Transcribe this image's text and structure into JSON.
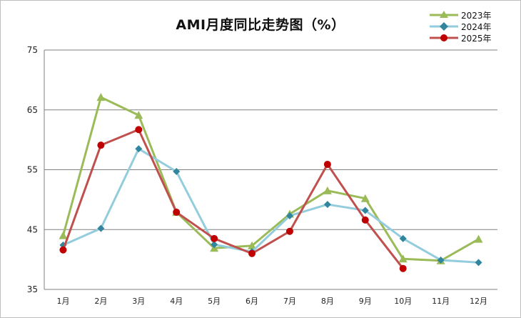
{
  "chart_data": {
    "type": "line",
    "title": "AMI月度同比走势图（%）",
    "xlabel": "",
    "ylabel": "",
    "categories": [
      "1月",
      "2月",
      "3月",
      "4月",
      "5月",
      "6月",
      "7月",
      "8月",
      "9月",
      "10月",
      "11月",
      "12月"
    ],
    "ylim": [
      35,
      75
    ],
    "yticks": [
      35,
      45,
      55,
      65,
      75
    ],
    "grid": true,
    "legend_position": "top-right",
    "series": [
      {
        "name": "2023年",
        "color": "#9bbb59",
        "marker": "triangle",
        "values": [
          44.0,
          67.1,
          64.1,
          47.9,
          41.9,
          42.3,
          47.6,
          51.5,
          50.2,
          40.1,
          39.8,
          43.4
        ]
      },
      {
        "name": "2024年",
        "color": "#93cddd",
        "marker_color": "#31859c",
        "marker": "diamond",
        "values": [
          42.4,
          45.2,
          58.5,
          54.7,
          42.5,
          41.3,
          47.3,
          49.2,
          48.2,
          43.5,
          39.9,
          39.5
        ]
      },
      {
        "name": "2025年",
        "color": "#c0504d",
        "marker_color": "#c00000",
        "marker": "circle",
        "values": [
          41.6,
          59.1,
          61.7,
          47.9,
          43.5,
          41.0,
          44.7,
          55.9,
          46.6,
          38.5,
          null,
          null
        ]
      }
    ]
  },
  "legend": {
    "items": [
      "2023年",
      "2024年",
      "2025年"
    ]
  }
}
